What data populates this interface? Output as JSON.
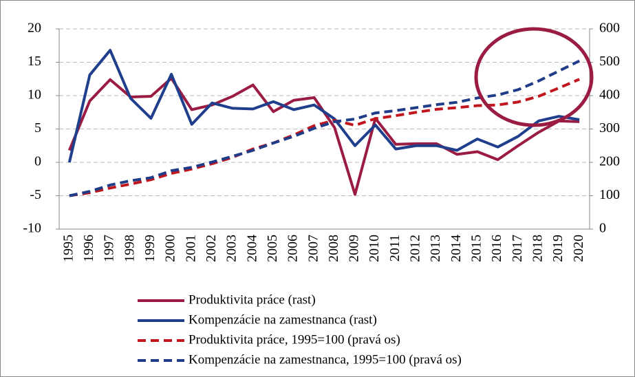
{
  "chart_data": {
    "type": "line",
    "categories": [
      "1995",
      "1996",
      "1997",
      "1998",
      "1999",
      "2000",
      "2001",
      "2002",
      "2003",
      "2004",
      "2005",
      "2006",
      "2007",
      "2008",
      "2009",
      "2010",
      "2011",
      "2012",
      "2013",
      "2014",
      "2015",
      "2016",
      "2017",
      "2018",
      "2019",
      "2020"
    ],
    "ylim": [
      -10,
      20
    ],
    "yticks": [
      -10,
      -5,
      0,
      5,
      10,
      15,
      20
    ],
    "y2lim": [
      0,
      600
    ],
    "y2ticks": [
      0,
      100,
      200,
      300,
      400,
      500,
      600
    ],
    "grid": true,
    "series": [
      {
        "name": "Produktivita práce (rast)",
        "color": "#9b1c42",
        "line_style": "solid",
        "values": [
          1.8,
          9.2,
          12.4,
          9.8,
          9.9,
          12.6,
          7.9,
          8.6,
          9.9,
          11.6,
          7.6,
          9.3,
          9.7,
          5.2,
          -4.8,
          6.6,
          2.7,
          2.8,
          2.8,
          1.2,
          1.6,
          0.4,
          2.5,
          4.5,
          6.2,
          6.1
        ]
      },
      {
        "name": "Kompenzácie na zamestnanca (rast)",
        "color": "#1f3f8c",
        "line_style": "solid",
        "values": [
          0,
          13.1,
          16.8,
          9.6,
          6.6,
          13.2,
          5.7,
          8.9,
          8.1,
          8.0,
          9.1,
          7.9,
          8.6,
          6.5,
          2.5,
          5.6,
          2.0,
          2.5,
          2.5,
          1.8,
          3.5,
          2.3,
          3.9,
          6.2,
          6.9,
          6.4
        ]
      },
      {
        "name": "Produktivita práce, 1995=100 (pravá os)",
        "color": "#c0161e",
        "line_style": "dashed",
        "axis": "y2",
        "values": [
          100,
          109,
          123,
          135,
          148,
          167,
          180,
          196,
          215,
          240,
          258,
          282,
          310,
          326,
          311,
          331,
          340,
          350,
          359,
          364,
          370,
          372,
          381,
          398,
          423,
          449
        ]
      },
      {
        "name": "Kompenzácie na zamestnanca, 1995=100 (pravá os)",
        "color": "#1f3c88",
        "line_style": "dashed",
        "axis": "y2",
        "values": [
          100,
          113,
          132,
          145,
          154,
          175,
          185,
          201,
          218,
          236,
          258,
          278,
          302,
          322,
          330,
          348,
          355,
          364,
          373,
          380,
          393,
          402,
          418,
          444,
          474,
          504
        ]
      }
    ]
  }
}
